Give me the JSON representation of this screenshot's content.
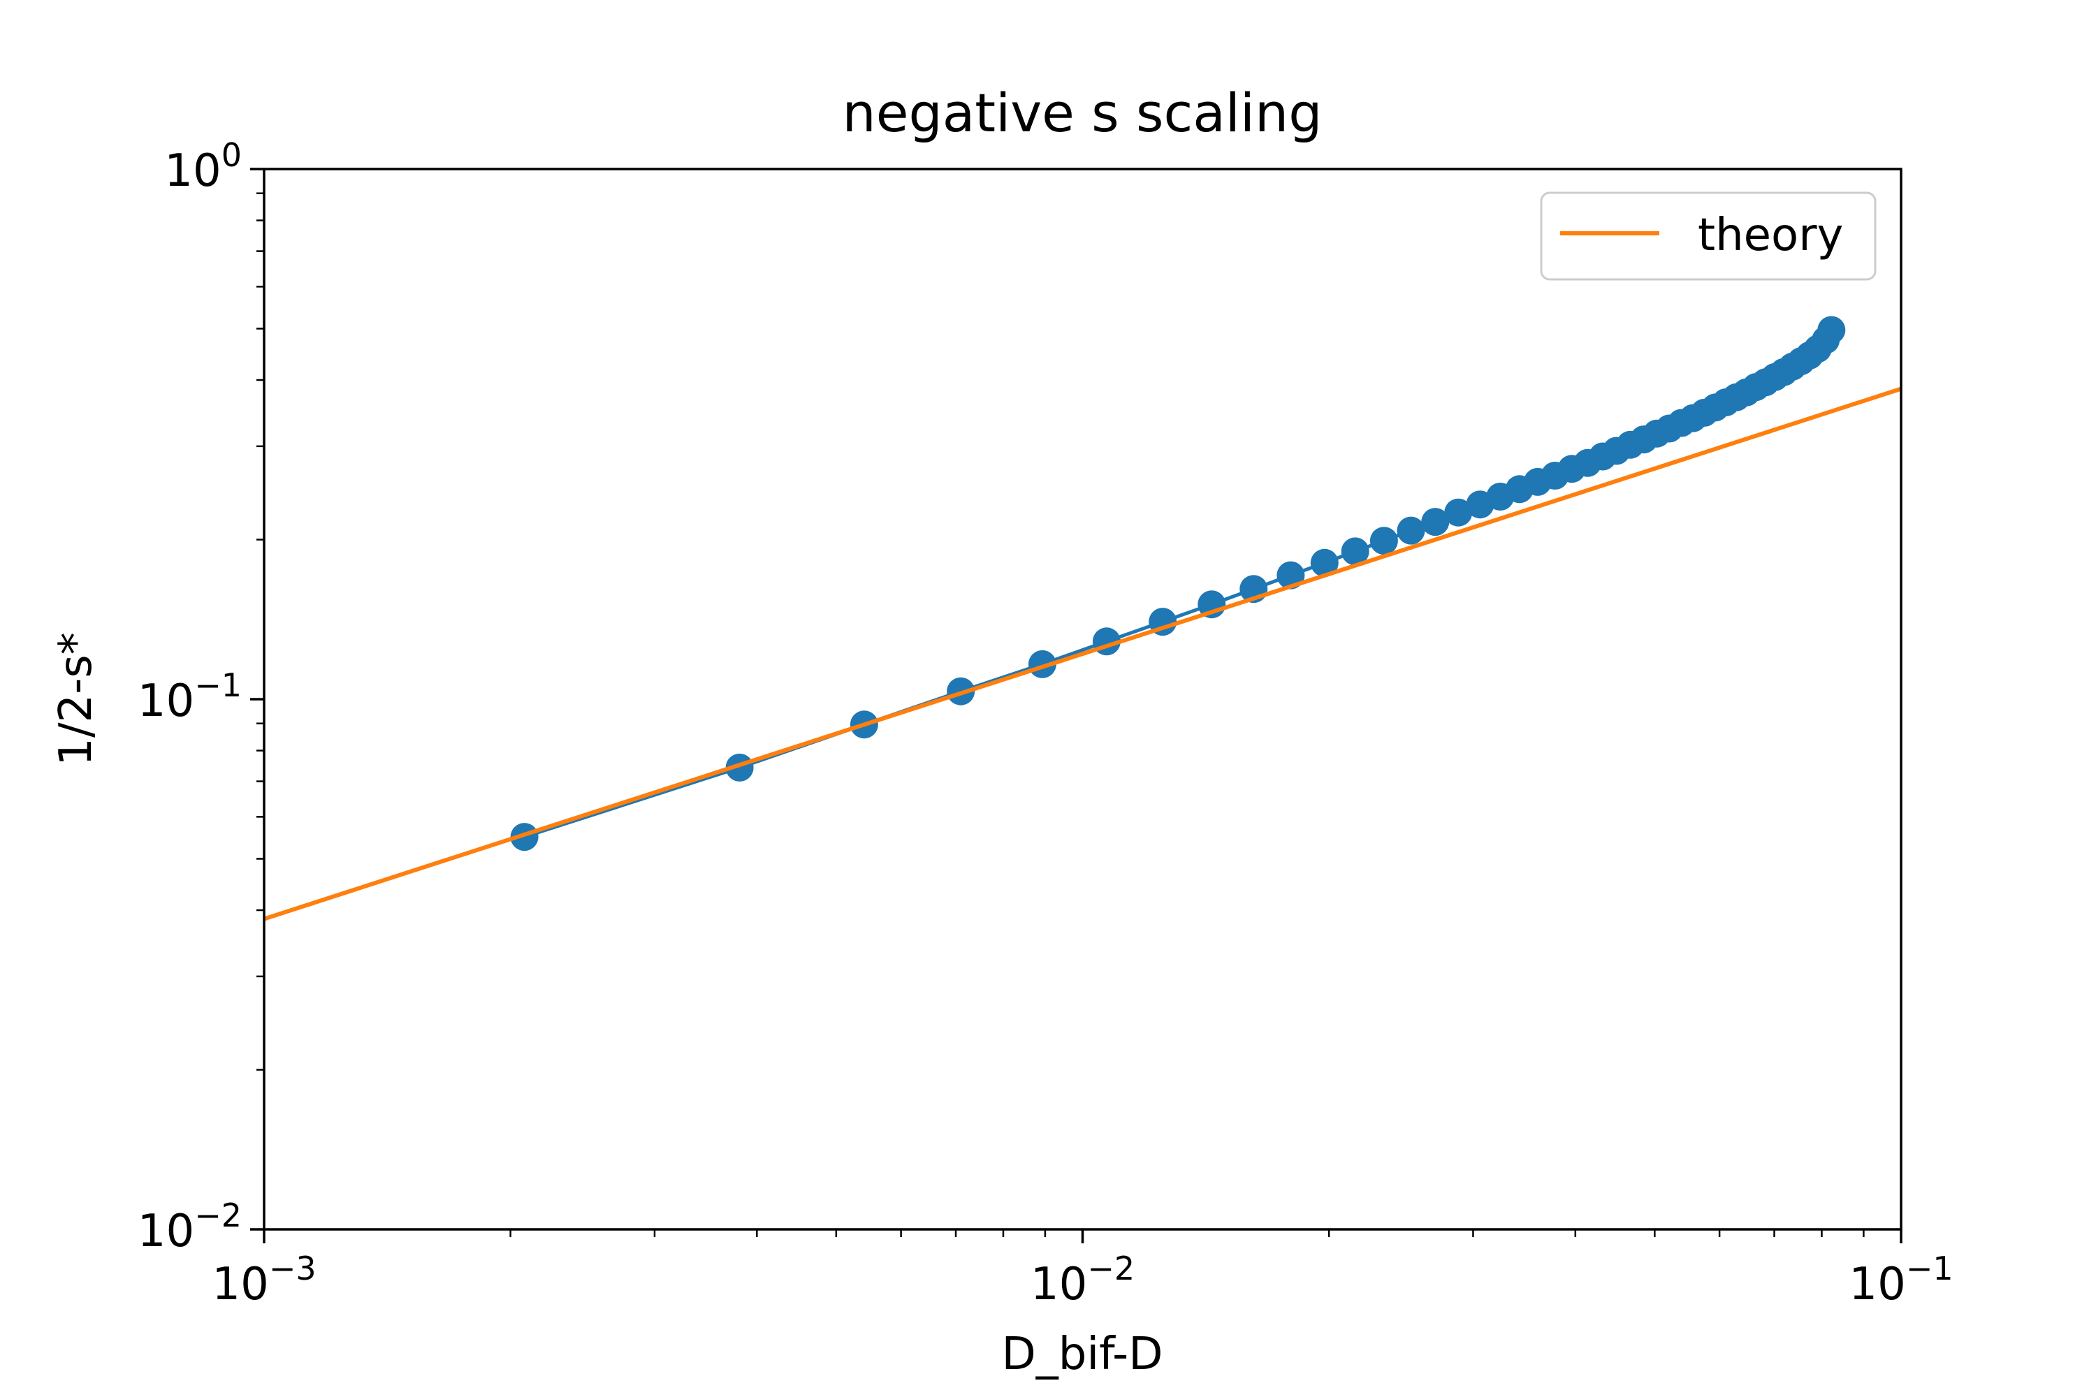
{
  "chart_data": {
    "type": "line",
    "title": "negative s scaling",
    "xlabel": "D_bif-D",
    "ylabel": "1/2-s*",
    "xscale": "log",
    "yscale": "log",
    "xlim": [
      0.001,
      0.1
    ],
    "ylim": [
      0.01,
      1
    ],
    "xticks": [
      {
        "value": 0.001,
        "base": "10",
        "exp": "−3"
      },
      {
        "value": 0.01,
        "base": "10",
        "exp": "−2"
      },
      {
        "value": 0.1,
        "base": "10",
        "exp": "−1"
      }
    ],
    "yticks": [
      {
        "value": 0.01,
        "base": "10",
        "exp": "−2"
      },
      {
        "value": 0.1,
        "base": "10",
        "exp": "−1"
      },
      {
        "value": 1,
        "base": "10",
        "exp": "0"
      }
    ],
    "grid": false,
    "legend": {
      "position": "top-right",
      "entries": [
        "theory"
      ]
    },
    "series": [
      {
        "color": "#1f77b4",
        "style": "line-with-markers",
        "x": [
          0.00208,
          0.00381,
          0.00541,
          0.0071,
          0.00893,
          0.0107,
          0.01253,
          0.01438,
          0.01618,
          0.01796,
          0.01975,
          0.02153,
          0.02335,
          0.02519,
          0.02697,
          0.02878,
          0.0306,
          0.03238,
          0.03418,
          0.03598,
          0.03777,
          0.0396,
          0.0414,
          0.0432,
          0.0449,
          0.0467,
          0.0485,
          0.0503,
          0.0521,
          0.0539,
          0.0557,
          0.0575,
          0.0593,
          0.0611,
          0.0629,
          0.0647,
          0.0665,
          0.0683,
          0.0701,
          0.0719,
          0.0737,
          0.0755,
          0.0773,
          0.0791,
          0.0809,
          0.0822
        ],
        "y": [
          0.055,
          0.0743,
          0.0896,
          0.1035,
          0.1164,
          0.1285,
          0.14,
          0.151,
          0.1614,
          0.1713,
          0.1808,
          0.19,
          0.199,
          0.208,
          0.216,
          0.225,
          0.233,
          0.241,
          0.249,
          0.257,
          0.264,
          0.272,
          0.279,
          0.287,
          0.294,
          0.302,
          0.309,
          0.317,
          0.324,
          0.332,
          0.339,
          0.347,
          0.355,
          0.363,
          0.371,
          0.379,
          0.388,
          0.396,
          0.405,
          0.414,
          0.424,
          0.434,
          0.445,
          0.458,
          0.476,
          0.497
        ]
      },
      {
        "name": "theory",
        "color": "#ff7f0e",
        "style": "line",
        "x": [
          0.001,
          0.1
        ],
        "y": [
          0.0385,
          0.385
        ]
      }
    ]
  }
}
